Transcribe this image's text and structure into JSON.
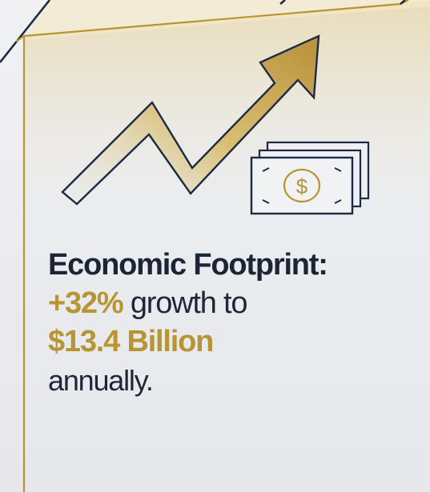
{
  "headline": {
    "label": "Economic Footprint:",
    "growth_value": "+32%",
    "growth_text": "growth to",
    "amount": "$13.4 Billion",
    "period": "annually."
  },
  "icons": {
    "trend": "trend-up-arrow-icon",
    "money": "banknotes-dollar-icon"
  },
  "colors": {
    "accent_gold": "#b89533",
    "navy": "#1c2536",
    "background": "#eceef1"
  }
}
